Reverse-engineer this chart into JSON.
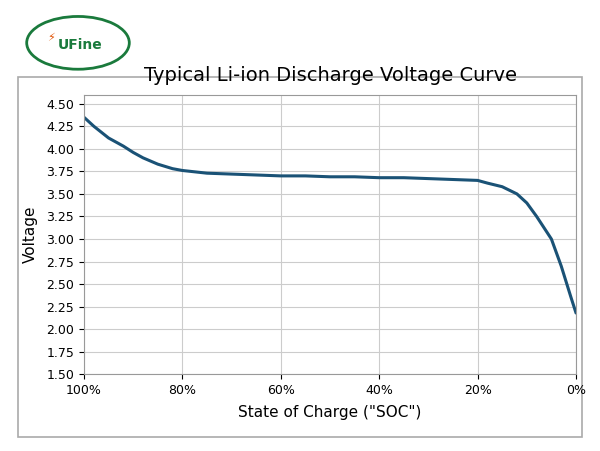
{
  "title": "Typical Li-ion Discharge Voltage Curve",
  "xlabel": "State of Charge (\"SOC\")",
  "ylabel": "Voltage",
  "line_color": "#1a5276",
  "line_width": 2.2,
  "ylim": [
    1.5,
    4.6
  ],
  "yticks": [
    1.5,
    1.75,
    2.0,
    2.25,
    2.5,
    2.75,
    3.0,
    3.25,
    3.5,
    3.75,
    4.0,
    4.25,
    4.5
  ],
  "xtick_labels": [
    "100%",
    "80%",
    "60%",
    "40%",
    "20%",
    "0%"
  ],
  "xtick_positions": [
    100,
    80,
    60,
    40,
    20,
    0
  ],
  "xlim_left": 100,
  "xlim_right": 0,
  "background_color": "#ffffff",
  "grid_color": "#cccccc",
  "title_fontsize": 14,
  "axis_label_fontsize": 11,
  "tick_fontsize": 9,
  "logo_green": "#1a7a3c",
  "logo_orange": "#e05000",
  "soc_x": [
    100,
    98,
    95,
    92,
    90,
    88,
    85,
    82,
    80,
    75,
    70,
    65,
    60,
    55,
    50,
    45,
    40,
    35,
    30,
    25,
    20,
    18,
    15,
    12,
    10,
    8,
    5,
    3,
    1,
    0
  ],
  "voltage_y": [
    4.35,
    4.25,
    4.12,
    4.03,
    3.96,
    3.9,
    3.83,
    3.78,
    3.76,
    3.73,
    3.72,
    3.71,
    3.7,
    3.7,
    3.69,
    3.69,
    3.68,
    3.68,
    3.67,
    3.66,
    3.65,
    3.62,
    3.58,
    3.5,
    3.4,
    3.25,
    3.0,
    2.7,
    2.35,
    2.18
  ]
}
